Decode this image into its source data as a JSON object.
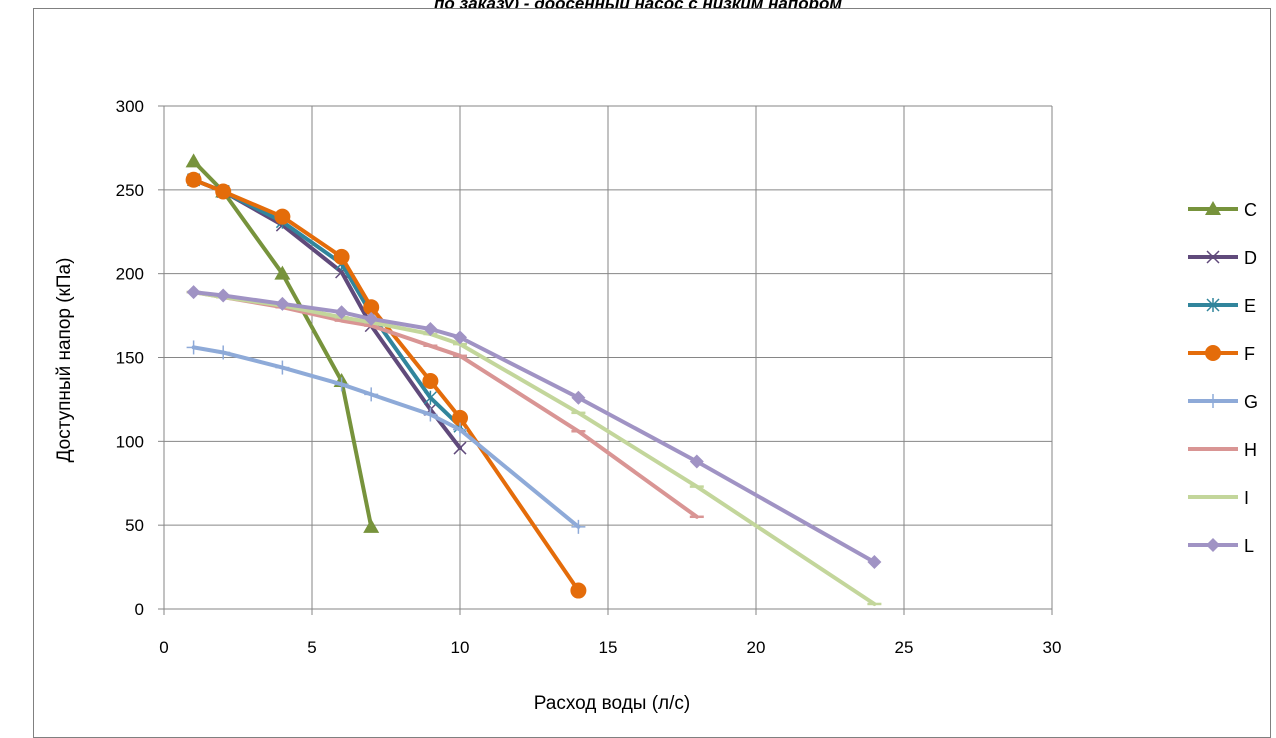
{
  "title_fragment": "по заказу) - доосенный насос с низким напором",
  "chart_data": {
    "type": "line",
    "xlabel": "Расход воды (л/с)",
    "ylabel": "Доступный напор (кПа)",
    "xlim": [
      0,
      30
    ],
    "ylim": [
      0,
      300
    ],
    "x_ticks": [
      0,
      5,
      10,
      15,
      20,
      25,
      30
    ],
    "y_ticks": [
      0,
      50,
      100,
      150,
      200,
      250,
      300
    ],
    "grid": true,
    "legend_position": "right",
    "series": [
      {
        "name": "C",
        "color": "#77933c",
        "marker": "triangle",
        "x": [
          1,
          2,
          4,
          6,
          7
        ],
        "y": [
          267,
          249,
          200,
          136,
          49
        ]
      },
      {
        "name": "D",
        "color": "#604a7b",
        "marker": "x",
        "x": [
          1,
          2,
          4,
          6,
          7,
          9,
          10
        ],
        "y": [
          256,
          249,
          229,
          201,
          169,
          119,
          96
        ]
      },
      {
        "name": "E",
        "color": "#31859c",
        "marker": "star",
        "x": [
          1,
          2,
          4,
          6,
          7,
          9,
          10
        ],
        "y": [
          256,
          249,
          231,
          206,
          176,
          126,
          109
        ]
      },
      {
        "name": "F",
        "color": "#e46c0a",
        "marker": "circle",
        "x": [
          1,
          2,
          4,
          6,
          7,
          9,
          10,
          14
        ],
        "y": [
          256,
          249,
          234,
          210,
          180,
          136,
          114,
          11
        ]
      },
      {
        "name": "G",
        "color": "#8eaad8",
        "marker": "plus",
        "x": [
          1,
          2,
          4,
          6,
          7,
          9,
          10,
          14
        ],
        "y": [
          156,
          153,
          144,
          134,
          128,
          116,
          107,
          49
        ]
      },
      {
        "name": "H",
        "color": "#d99594",
        "marker": "dash",
        "x": [
          1,
          2,
          4,
          6,
          7,
          9,
          10,
          14,
          18
        ],
        "y": [
          189,
          186,
          180,
          172,
          169,
          157,
          151,
          106,
          55
        ]
      },
      {
        "name": "I",
        "color": "#c3d69b",
        "marker": "dash",
        "x": [
          1,
          2,
          4,
          6,
          7,
          9,
          10,
          14,
          18,
          24
        ],
        "y": [
          189,
          186,
          181,
          174,
          171,
          164,
          158,
          117,
          73,
          3
        ]
      },
      {
        "name": "L",
        "color": "#a093c4",
        "marker": "diamond",
        "x": [
          1,
          2,
          4,
          6,
          7,
          9,
          10,
          14,
          18,
          24
        ],
        "y": [
          189,
          187,
          182,
          177,
          173,
          167,
          162,
          126,
          88,
          28
        ]
      }
    ]
  }
}
